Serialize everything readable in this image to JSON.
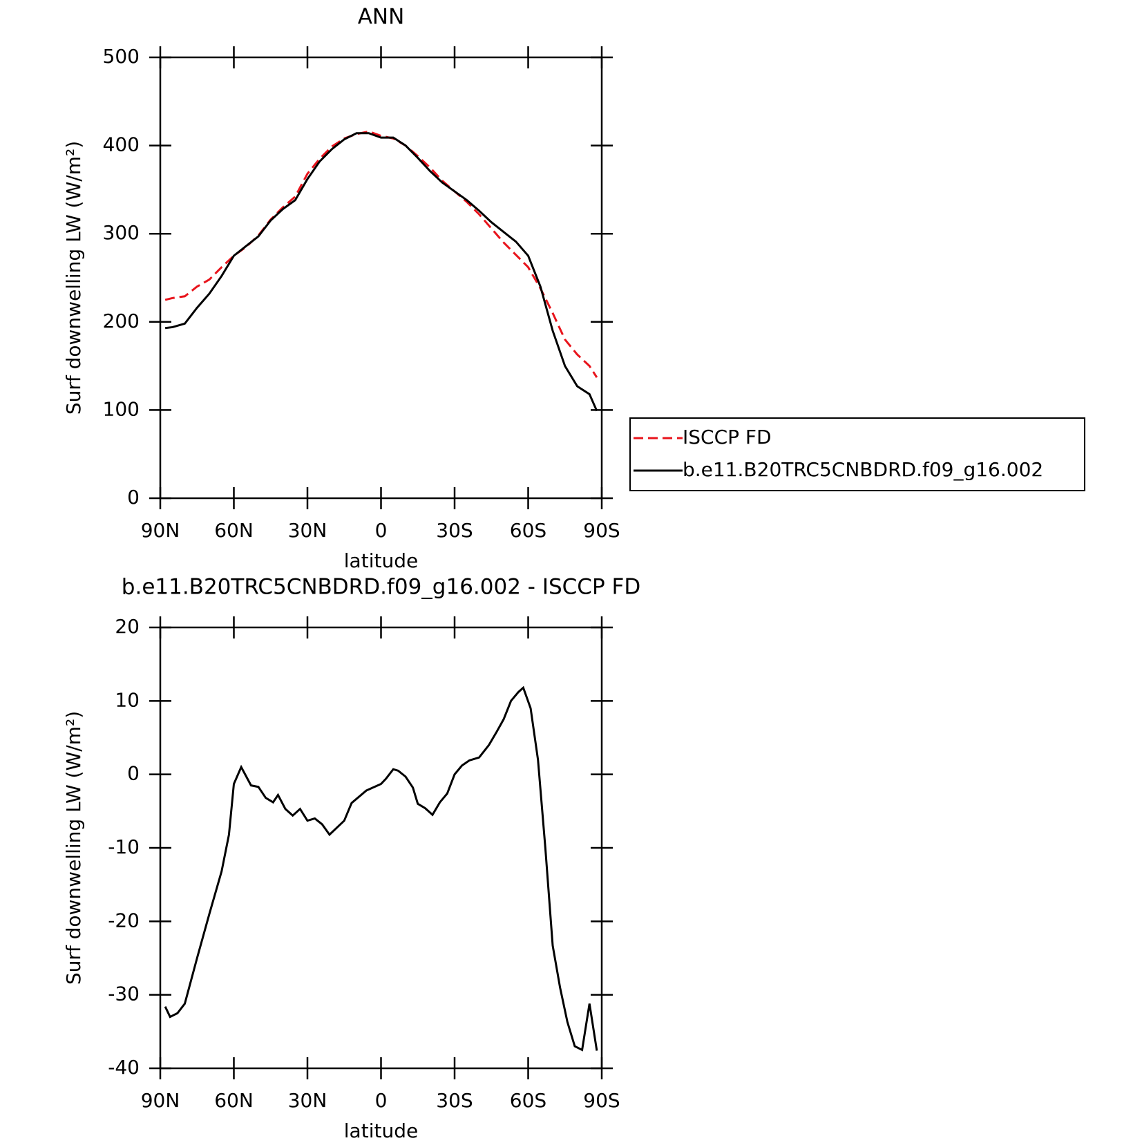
{
  "chart_data": [
    {
      "type": "line",
      "title": "ANN",
      "xlabel": "latitude",
      "ylabel": "Surf downwelling LW (W/m²)",
      "x": [
        88,
        85,
        80,
        75,
        70,
        65,
        60,
        55,
        50,
        45,
        40,
        35,
        30,
        25,
        20,
        15,
        10,
        5,
        0,
        -5,
        -10,
        -15,
        -20,
        -25,
        -30,
        -35,
        -40,
        -45,
        -50,
        -55,
        -60,
        -65,
        -70,
        -75,
        -80,
        -85,
        -88
      ],
      "series": [
        {
          "name": "ISCCP FD",
          "color": "#e8141c",
          "linestyle": "dashed",
          "values": [
            225,
            227,
            229,
            240,
            248,
            262,
            275,
            285,
            298,
            316,
            330,
            342,
            368,
            385,
            399,
            408,
            413,
            416,
            411,
            408,
            400,
            388,
            375,
            360,
            348,
            336,
            322,
            306,
            290,
            276,
            262,
            238,
            210,
            180,
            163,
            150,
            137
          ]
        },
        {
          "name": "b.e11.B20TRC5CNBDRD.f09_g16.002",
          "color": "#000000",
          "linestyle": "solid",
          "values": [
            193,
            194,
            198,
            216,
            232,
            252,
            275,
            286,
            297,
            315,
            328,
            338,
            362,
            382,
            396,
            407,
            414,
            414,
            409,
            409,
            400,
            386,
            371,
            358,
            348,
            338,
            326,
            313,
            302,
            291,
            275,
            240,
            190,
            150,
            127,
            118,
            99
          ]
        }
      ],
      "xlim": [
        90,
        -90
      ],
      "ylim": [
        0,
        500
      ],
      "xticks": [
        {
          "value": 90,
          "label": "90N"
        },
        {
          "value": 60,
          "label": "60N"
        },
        {
          "value": 30,
          "label": "30N"
        },
        0,
        {
          "value": -30,
          "label": "30S"
        },
        {
          "value": -60,
          "label": "60S"
        },
        {
          "value": -90,
          "label": "90S"
        }
      ],
      "yticks": [
        0,
        100,
        200,
        300,
        400,
        500
      ],
      "legend": "right"
    },
    {
      "type": "line",
      "title": "b.e11.B20TRC5CNBDRD.f09_g16.002 - ISCCP FD",
      "xlabel": "latitude",
      "ylabel": "Surf downwelling LW (W/m²)",
      "x": [
        88,
        86,
        83,
        80,
        75,
        70,
        65,
        62,
        60,
        57,
        53,
        50,
        47,
        44,
        42,
        39,
        36,
        33,
        30,
        27,
        24,
        21,
        15,
        12,
        6,
        0,
        -2,
        -5,
        -7,
        -10,
        -13,
        -15,
        -18,
        -21,
        -24,
        -27,
        -30,
        -33,
        -36,
        -40,
        -44,
        -47,
        -50,
        -53,
        -56,
        -58,
        -61,
        -64,
        -67,
        -70,
        -73,
        -76,
        -79,
        -82,
        -85,
        -88
      ],
      "series": [
        {
          "color": "#000000",
          "linestyle": "solid",
          "values": [
            -31.6,
            -33,
            -32.5,
            -31.2,
            -25,
            -19,
            -13.2,
            -8.2,
            -1.3,
            1.0,
            -1.5,
            -1.7,
            -3.2,
            -3.8,
            -2.8,
            -4.7,
            -5.6,
            -4.7,
            -6.3,
            -6.0,
            -6.8,
            -8.2,
            -6.3,
            -3.9,
            -2.2,
            -1.3,
            -0.6,
            0.7,
            0.5,
            -0.3,
            -1.8,
            -4,
            -4.6,
            -5.5,
            -3.8,
            -2.6,
            0,
            1.2,
            1.9,
            2.3,
            4,
            5.7,
            7.5,
            10,
            11.2,
            11.8,
            9,
            2,
            -10,
            -23.3,
            -29,
            -33.7,
            -37,
            -37.5,
            -31.2,
            -37.6
          ]
        }
      ],
      "xlim": [
        90,
        -90
      ],
      "ylim": [
        -40,
        20
      ],
      "xticks": [
        {
          "value": 90,
          "label": "90N"
        },
        {
          "value": 60,
          "label": "60N"
        },
        {
          "value": 30,
          "label": "30N"
        },
        0,
        {
          "value": -30,
          "label": "30S"
        },
        {
          "value": -60,
          "label": "60S"
        },
        {
          "value": -90,
          "label": "90S"
        }
      ],
      "yticks": [
        -40,
        -30,
        -20,
        -10,
        0,
        10,
        20
      ]
    }
  ]
}
